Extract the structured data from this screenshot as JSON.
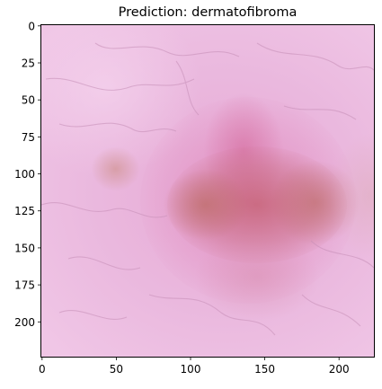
{
  "figure": {
    "title": "Prediction: dermatofibroma",
    "image": {
      "subject": "dermoscopy-skin-lesion",
      "background_color": "#e8b3dc",
      "lesion_color": "#c9707f",
      "vein_color": "#c68fb7"
    },
    "x_axis": {
      "range": [
        -0.5,
        223.5
      ],
      "ticks": [
        0,
        50,
        100,
        150,
        200
      ],
      "tick_labels": [
        "0",
        "50",
        "100",
        "150",
        "200"
      ]
    },
    "y_axis": {
      "range": [
        -0.5,
        223.5
      ],
      "inverted": true,
      "ticks": [
        0,
        25,
        50,
        75,
        100,
        125,
        150,
        175,
        200
      ],
      "tick_labels": [
        "0",
        "25",
        "50",
        "75",
        "100",
        "125",
        "150",
        "175",
        "200"
      ]
    }
  }
}
